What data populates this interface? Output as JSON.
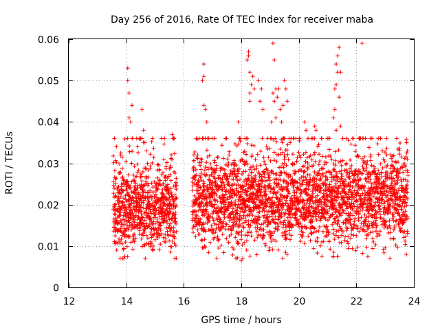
{
  "chart_data": {
    "type": "scatter",
    "title": "Day 256 of 2016, Rate Of TEC Index for receiver maba",
    "xlabel": "GPS time / hours",
    "ylabel": "ROTI / TECUs",
    "xlim": [
      12,
      24
    ],
    "ylim": [
      0,
      0.06
    ],
    "x_ticks": [
      12,
      14,
      16,
      18,
      20,
      22,
      24
    ],
    "x_tick_labels": [
      "12",
      "14",
      "16",
      "18",
      "20",
      "22",
      "24"
    ],
    "y_ticks": [
      0,
      0.01,
      0.02,
      0.03,
      0.04,
      0.05,
      0.06
    ],
    "y_tick_labels": [
      "0",
      "0.01",
      "0.02",
      "0.03",
      "0.04",
      "0.05",
      "0.06"
    ],
    "grid": true,
    "marker": "+",
    "color": "#ff0000",
    "series": [
      {
        "name": "maba",
        "segments": [
          {
            "start": 13.55,
            "end": 15.75,
            "base": 0.019,
            "spread": 0.007,
            "step": 0.0042
          },
          {
            "start": 16.3,
            "end": 23.8,
            "base": 0.021,
            "spread": 0.0075,
            "step": 0.0042
          }
        ],
        "points": [
          [
            14.05,
            0.053
          ],
          [
            14.05,
            0.05
          ],
          [
            14.1,
            0.047
          ],
          [
            14.1,
            0.041
          ],
          [
            14.15,
            0.04
          ],
          [
            14.2,
            0.044
          ],
          [
            13.8,
            0.032
          ],
          [
            14.55,
            0.043
          ],
          [
            14.6,
            0.038
          ],
          [
            14.5,
            0.036
          ],
          [
            14.65,
            0.035
          ],
          [
            14.4,
            0.034
          ],
          [
            14.7,
            0.033
          ],
          [
            13.95,
            0.0075
          ],
          [
            15.6,
            0.037
          ],
          [
            15.65,
            0.036
          ],
          [
            16.7,
            0.054
          ],
          [
            16.7,
            0.051
          ],
          [
            16.65,
            0.05
          ],
          [
            16.7,
            0.044
          ],
          [
            16.75,
            0.043
          ],
          [
            16.8,
            0.04
          ],
          [
            16.65,
            0.036
          ],
          [
            17.9,
            0.04
          ],
          [
            18.0,
            0.0065
          ],
          [
            18.05,
            0.007
          ],
          [
            18.2,
            0.055
          ],
          [
            18.25,
            0.056
          ],
          [
            18.3,
            0.052
          ],
          [
            18.35,
            0.049
          ],
          [
            18.4,
            0.051
          ],
          [
            18.3,
            0.045
          ],
          [
            18.45,
            0.048
          ],
          [
            18.6,
            0.05
          ],
          [
            18.65,
            0.045
          ],
          [
            18.7,
            0.048
          ],
          [
            18.75,
            0.043
          ],
          [
            18.25,
            0.057
          ],
          [
            18.3,
            0.047
          ],
          [
            19.1,
            0.059
          ],
          [
            19.15,
            0.055
          ],
          [
            19.2,
            0.048
          ],
          [
            19.1,
            0.047
          ],
          [
            19.25,
            0.046
          ],
          [
            19.3,
            0.048
          ],
          [
            19.15,
            0.045
          ],
          [
            19.35,
            0.043
          ],
          [
            19.45,
            0.044
          ],
          [
            19.5,
            0.05
          ],
          [
            19.55,
            0.048
          ],
          [
            19.6,
            0.045
          ],
          [
            19.05,
            0.04
          ],
          [
            19.2,
            0.041
          ],
          [
            19.4,
            0.04
          ],
          [
            20.2,
            0.04
          ],
          [
            20.25,
            0.038
          ],
          [
            20.55,
            0.039
          ],
          [
            20.6,
            0.038
          ],
          [
            21.2,
            0.041
          ],
          [
            21.25,
            0.043
          ],
          [
            21.3,
            0.049
          ],
          [
            21.35,
            0.056
          ],
          [
            21.4,
            0.058
          ],
          [
            21.3,
            0.054
          ],
          [
            21.35,
            0.052
          ],
          [
            21.25,
            0.048
          ],
          [
            21.4,
            0.046
          ],
          [
            21.45,
            0.052
          ],
          [
            21.3,
            0.038
          ],
          [
            21.45,
            0.039
          ],
          [
            22.2,
            0.059
          ],
          [
            22.15,
            0.036
          ],
          [
            20.8,
            0.0075
          ],
          [
            22.9,
            0.033
          ],
          [
            23.6,
            0.029
          ]
        ]
      }
    ]
  }
}
